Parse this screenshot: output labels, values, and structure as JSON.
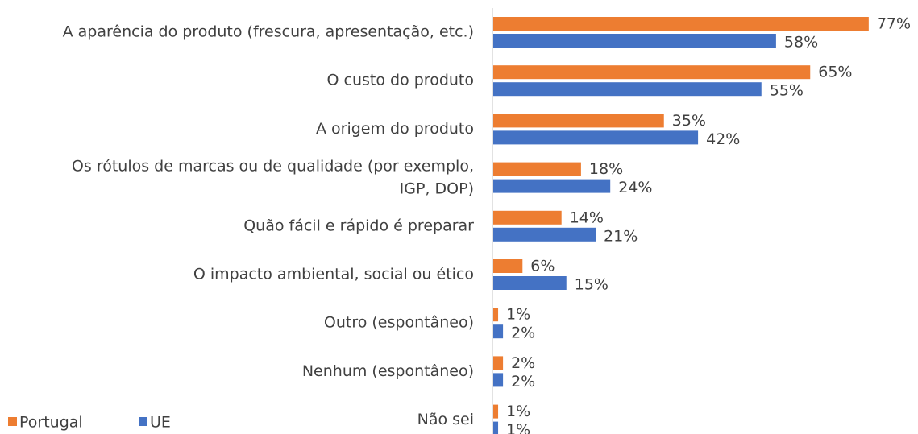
{
  "chart_data": {
    "type": "bar",
    "orientation": "horizontal",
    "categories": [
      "A aparência do produto (frescura, apresentação, etc.)",
      "O custo do produto",
      "A origem do produto",
      "Os rótulos de marcas ou de qualidade (por exemplo,\nIGP, DOP)",
      "Quão fácil e rápido é preparar",
      "O impacto ambiental, social ou ético",
      "Outro (espontâneo)",
      "Nenhum (espontâneo)",
      "Não sei"
    ],
    "series": [
      {
        "name": "Portugal",
        "color": "#ed7d31",
        "values": [
          77,
          65,
          35,
          18,
          14,
          6,
          1,
          2,
          1
        ],
        "value_labels": [
          "77%",
          "65%",
          "35%",
          "18%",
          "14%",
          "6%",
          "1%",
          "2%",
          "1%"
        ]
      },
      {
        "name": "UE",
        "color": "#4472c4",
        "values": [
          58,
          55,
          42,
          24,
          21,
          15,
          2,
          2,
          1
        ],
        "value_labels": [
          "58%",
          "55%",
          "42%",
          "24%",
          "21%",
          "15%",
          "2%",
          "2%",
          "1%"
        ]
      }
    ],
    "legend": "bottom-left"
  }
}
